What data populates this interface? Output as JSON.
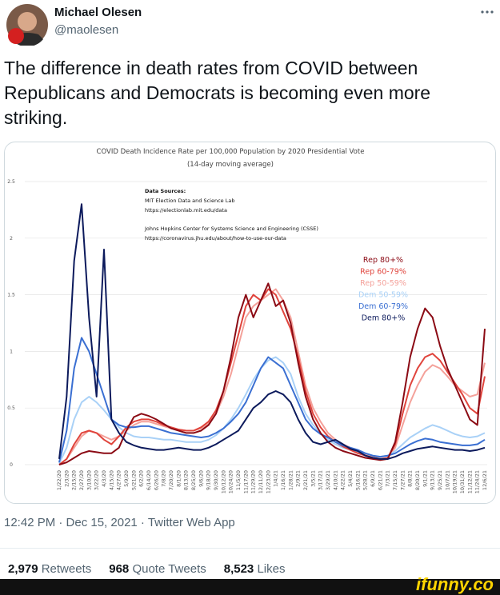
{
  "tweet": {
    "author": {
      "name": "Michael Olesen",
      "handle": "@maolesen"
    },
    "text": "The difference in death rates from COVID between Republicans and Democrats is becoming even more striking.",
    "timestamp": "12:42 PM · Dec 15, 2021 · Twitter Web App",
    "stats": [
      {
        "count": "2,979",
        "label": "Retweets"
      },
      {
        "count": "968",
        "label": "Quote Tweets"
      },
      {
        "count": "8,523",
        "label": "Likes"
      }
    ]
  },
  "watermark": "ifunny.co",
  "chart_data": {
    "type": "line",
    "title": "COVID Death Incidence Rate per 100,000 Population by 2020 Presidential Vote",
    "subtitle": "(14-day moving average)",
    "annotations": [
      "Data Sources:",
      "MIT Election Data and Science Lab",
      "https://electionlab.mit.edu/data",
      "Johns Hopkins Center for Systems Science and Engineering (CSSE)",
      "https://coronavirus.jhu.edu/about/how-to-use-our-data"
    ],
    "categories": [
      "1/22/20",
      "2/3/20",
      "2/15/20",
      "2/27/20",
      "3/10/20",
      "3/22/20",
      "4/3/20",
      "4/15/20",
      "4/27/20",
      "5/9/20",
      "5/21/20",
      "6/2/20",
      "6/14/20",
      "6/26/20",
      "7/8/20",
      "7/20/20",
      "8/1/20",
      "8/13/20",
      "8/25/20",
      "9/6/20",
      "9/18/20",
      "9/30/20",
      "10/12/20",
      "10/24/20",
      "11/5/20",
      "11/17/20",
      "11/29/20",
      "12/11/20",
      "12/23/20",
      "1/4/21",
      "1/16/21",
      "1/28/21",
      "2/9/21",
      "2/21/21",
      "3/5/21",
      "3/17/21",
      "3/29/21",
      "4/10/21",
      "4/22/21",
      "5/4/21",
      "5/16/21",
      "5/28/21",
      "6/9/21",
      "6/21/21",
      "7/3/21",
      "7/15/21",
      "7/27/21",
      "8/8/21",
      "8/20/21",
      "9/1/21",
      "9/13/21",
      "9/25/21",
      "10/7/21",
      "10/19/21",
      "10/31/21",
      "11/12/21",
      "11/24/21",
      "12/6/21"
    ],
    "ylim": [
      0,
      2.5
    ],
    "yticks": [
      0,
      0.5,
      1,
      1.5,
      2,
      2.5
    ],
    "grid": true,
    "series": [
      {
        "name": "Rep 80+%",
        "color": "#8b0a14",
        "values": [
          0,
          0.02,
          0.06,
          0.1,
          0.12,
          0.11,
          0.1,
          0.1,
          0.15,
          0.3,
          0.42,
          0.45,
          0.43,
          0.4,
          0.36,
          0.32,
          0.3,
          0.28,
          0.28,
          0.3,
          0.35,
          0.45,
          0.65,
          0.95,
          1.3,
          1.5,
          1.3,
          1.45,
          1.6,
          1.4,
          1.45,
          1.25,
          0.9,
          0.6,
          0.4,
          0.28,
          0.2,
          0.15,
          0.12,
          0.1,
          0.08,
          0.06,
          0.05,
          0.04,
          0.05,
          0.2,
          0.55,
          0.95,
          1.2,
          1.38,
          1.3,
          1.05,
          0.85,
          0.7,
          0.55,
          0.4,
          0.35,
          1.2
        ]
      },
      {
        "name": "Rep 60-79%",
        "color": "#e0443c",
        "values": [
          0,
          0.05,
          0.18,
          0.28,
          0.3,
          0.28,
          0.22,
          0.18,
          0.25,
          0.33,
          0.38,
          0.4,
          0.4,
          0.38,
          0.35,
          0.33,
          0.31,
          0.3,
          0.3,
          0.33,
          0.38,
          0.48,
          0.65,
          0.9,
          1.15,
          1.4,
          1.5,
          1.45,
          1.55,
          1.5,
          1.35,
          1.2,
          0.95,
          0.65,
          0.45,
          0.33,
          0.25,
          0.2,
          0.16,
          0.13,
          0.1,
          0.08,
          0.06,
          0.05,
          0.06,
          0.18,
          0.45,
          0.7,
          0.85,
          0.95,
          0.98,
          0.92,
          0.82,
          0.72,
          0.62,
          0.5,
          0.45,
          0.78
        ]
      },
      {
        "name": "Rep 50-59%",
        "color": "#f4a19a",
        "values": [
          0,
          0.05,
          0.15,
          0.25,
          0.3,
          0.28,
          0.25,
          0.22,
          0.25,
          0.3,
          0.35,
          0.38,
          0.38,
          0.36,
          0.34,
          0.32,
          0.31,
          0.3,
          0.3,
          0.32,
          0.36,
          0.45,
          0.6,
          0.8,
          1.05,
          1.3,
          1.4,
          1.45,
          1.5,
          1.55,
          1.45,
          1.3,
          1.0,
          0.7,
          0.5,
          0.38,
          0.28,
          0.22,
          0.18,
          0.15,
          0.12,
          0.09,
          0.07,
          0.05,
          0.06,
          0.15,
          0.35,
          0.55,
          0.7,
          0.82,
          0.88,
          0.85,
          0.78,
          0.7,
          0.65,
          0.6,
          0.62,
          0.9
        ]
      },
      {
        "name": "Dem 50-59%",
        "color": "#a9d1f7",
        "values": [
          0.01,
          0.15,
          0.4,
          0.55,
          0.6,
          0.55,
          0.48,
          0.4,
          0.33,
          0.28,
          0.25,
          0.24,
          0.24,
          0.23,
          0.22,
          0.22,
          0.21,
          0.2,
          0.2,
          0.2,
          0.22,
          0.26,
          0.32,
          0.4,
          0.5,
          0.62,
          0.75,
          0.85,
          0.92,
          0.95,
          0.9,
          0.8,
          0.6,
          0.45,
          0.35,
          0.28,
          0.22,
          0.18,
          0.15,
          0.13,
          0.11,
          0.1,
          0.08,
          0.07,
          0.08,
          0.12,
          0.18,
          0.24,
          0.28,
          0.32,
          0.35,
          0.33,
          0.3,
          0.27,
          0.25,
          0.24,
          0.25,
          0.28
        ]
      },
      {
        "name": "Dem 60-79%",
        "color": "#3a6fd2",
        "values": [
          0.02,
          0.3,
          0.85,
          1.12,
          1.0,
          0.8,
          0.6,
          0.4,
          0.35,
          0.33,
          0.33,
          0.34,
          0.34,
          0.32,
          0.3,
          0.28,
          0.27,
          0.26,
          0.25,
          0.24,
          0.25,
          0.28,
          0.32,
          0.38,
          0.45,
          0.55,
          0.7,
          0.85,
          0.95,
          0.9,
          0.85,
          0.7,
          0.55,
          0.4,
          0.32,
          0.27,
          0.24,
          0.2,
          0.17,
          0.15,
          0.13,
          0.1,
          0.08,
          0.07,
          0.08,
          0.1,
          0.14,
          0.18,
          0.21,
          0.23,
          0.22,
          0.2,
          0.19,
          0.18,
          0.17,
          0.17,
          0.18,
          0.22
        ]
      },
      {
        "name": "Dem 80+%",
        "color": "#0c1a5c",
        "values": [
          0.05,
          0.6,
          1.8,
          2.3,
          1.3,
          0.6,
          1.9,
          0.4,
          0.28,
          0.2,
          0.17,
          0.15,
          0.14,
          0.13,
          0.13,
          0.14,
          0.15,
          0.14,
          0.13,
          0.13,
          0.15,
          0.18,
          0.22,
          0.26,
          0.3,
          0.4,
          0.5,
          0.55,
          0.62,
          0.65,
          0.62,
          0.55,
          0.4,
          0.28,
          0.2,
          0.18,
          0.2,
          0.22,
          0.18,
          0.14,
          0.12,
          0.08,
          0.06,
          0.05,
          0.05,
          0.07,
          0.1,
          0.12,
          0.14,
          0.15,
          0.16,
          0.15,
          0.14,
          0.13,
          0.13,
          0.12,
          0.13,
          0.15
        ]
      }
    ]
  }
}
